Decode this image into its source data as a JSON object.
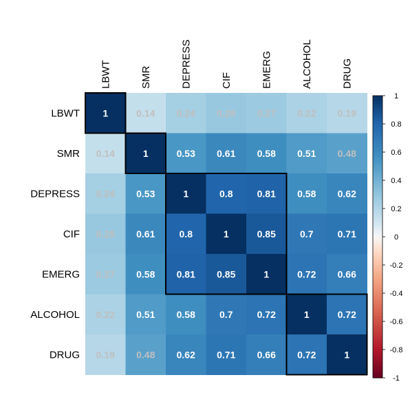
{
  "chart_data": {
    "type": "heatmap",
    "title": "",
    "variables": [
      "LBWT",
      "SMR",
      "DEPRESS",
      "CIF",
      "EMERG",
      "ALCOHOL",
      "DRUG"
    ],
    "matrix": [
      [
        1,
        0.14,
        0.24,
        0.28,
        0.27,
        0.22,
        0.19
      ],
      [
        0.14,
        1,
        0.53,
        0.61,
        0.58,
        0.51,
        0.48
      ],
      [
        0.24,
        0.53,
        1,
        0.8,
        0.81,
        0.58,
        0.62
      ],
      [
        0.28,
        0.61,
        0.8,
        1,
        0.85,
        0.7,
        0.71
      ],
      [
        0.27,
        0.58,
        0.81,
        0.85,
        1,
        0.72,
        0.66
      ],
      [
        0.22,
        0.51,
        0.58,
        0.7,
        0.72,
        1,
        0.72
      ],
      [
        0.19,
        0.48,
        0.62,
        0.71,
        0.66,
        0.72,
        1
      ]
    ],
    "cell_labels": [
      [
        "1",
        "0.14",
        "0.24",
        "0.28",
        "0.27",
        "0.22",
        "0.19"
      ],
      [
        "0.14",
        "1",
        "0.53",
        "0.61",
        "0.58",
        "0.51",
        "0.48"
      ],
      [
        "0.24",
        "0.53",
        "1",
        "0.8",
        "0.81",
        "0.58",
        "0.62"
      ],
      [
        "0.28",
        "0.61",
        "0.8",
        "1",
        "0.85",
        "0.7",
        "0.71"
      ],
      [
        "0.27",
        "0.58",
        "0.81",
        "0.85",
        "1",
        "0.72",
        "0.66"
      ],
      [
        "0.22",
        "0.51",
        "0.58",
        "0.7",
        "0.72",
        "1",
        "0.72"
      ],
      [
        "0.19",
        "0.48",
        "0.62",
        "0.71",
        "0.66",
        "0.72",
        "1"
      ]
    ],
    "clusters": [
      {
        "start": 0,
        "end": 0
      },
      {
        "start": 1,
        "end": 1
      },
      {
        "start": 2,
        "end": 4
      },
      {
        "start": 5,
        "end": 6
      }
    ],
    "colorbar": {
      "range": [
        -1,
        1
      ],
      "tick_labels": [
        "1",
        "0.8",
        "0.6",
        "0.4",
        "0.2",
        "0",
        "-0.2",
        "-0.4",
        "-0.6",
        "-0.8",
        "-1"
      ],
      "tick_values": [
        1,
        0.8,
        0.6,
        0.4,
        0.2,
        0,
        -0.2,
        -0.4,
        -0.6,
        -0.8,
        -1
      ]
    },
    "colors": {
      "low": "#67001F",
      "mid": "#F7F7F7",
      "high": "#053061",
      "label_dark": "#BFBFBF",
      "label_light": "#FFFFFF",
      "outline": "#000000"
    },
    "legend_position": "right"
  }
}
